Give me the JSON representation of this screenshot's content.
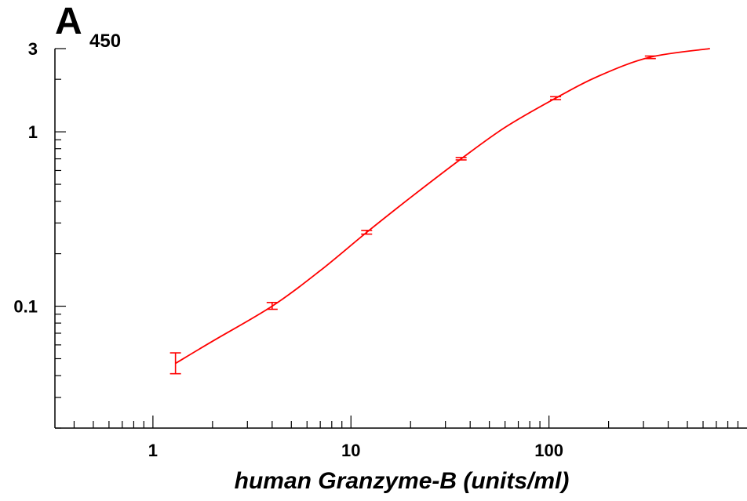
{
  "chart_data": {
    "type": "line",
    "x_scale": "log",
    "y_scale": "log",
    "xlabel": "human Granzyme-B (units/ml)",
    "ylabel_main": "A",
    "ylabel_sub": "450",
    "xlim": [
      0.32,
      1000
    ],
    "ylim": [
      0.02,
      3
    ],
    "x_tick_labels": [
      {
        "value": 1,
        "label": "1"
      },
      {
        "value": 10,
        "label": "10"
      },
      {
        "value": 100,
        "label": "100"
      }
    ],
    "y_tick_labels": [
      {
        "value": 0.1,
        "label": "0.1"
      },
      {
        "value": 1,
        "label": "1"
      },
      {
        "value": 3,
        "label": "3"
      }
    ],
    "series": [
      {
        "color": "#ff0000",
        "points": [
          {
            "x": 1.3,
            "y": 0.047,
            "err_low": 0.041,
            "err_high": 0.054
          },
          {
            "x": 4.0,
            "y": 0.1,
            "err_low": 0.096,
            "err_high": 0.105
          },
          {
            "x": 12.0,
            "y": 0.265,
            "err_low": 0.259,
            "err_high": 0.272
          },
          {
            "x": 36.0,
            "y": 0.7,
            "err_low": 0.69,
            "err_high": 0.712
          },
          {
            "x": 108.0,
            "y": 1.56,
            "err_low": 1.53,
            "err_high": 1.59
          },
          {
            "x": 325.0,
            "y": 2.68,
            "err_low": 2.63,
            "err_high": 2.72
          }
        ],
        "fit_curve": [
          {
            "x": 1.3,
            "y": 0.047
          },
          {
            "x": 2.0,
            "y": 0.063
          },
          {
            "x": 4.0,
            "y": 0.1
          },
          {
            "x": 7.0,
            "y": 0.16
          },
          {
            "x": 12.0,
            "y": 0.265
          },
          {
            "x": 20.0,
            "y": 0.42
          },
          {
            "x": 36.0,
            "y": 0.7
          },
          {
            "x": 60.0,
            "y": 1.06
          },
          {
            "x": 108.0,
            "y": 1.56
          },
          {
            "x": 180.0,
            "y": 2.1
          },
          {
            "x": 325.0,
            "y": 2.68
          },
          {
            "x": 650.0,
            "y": 3.0
          }
        ]
      }
    ]
  }
}
